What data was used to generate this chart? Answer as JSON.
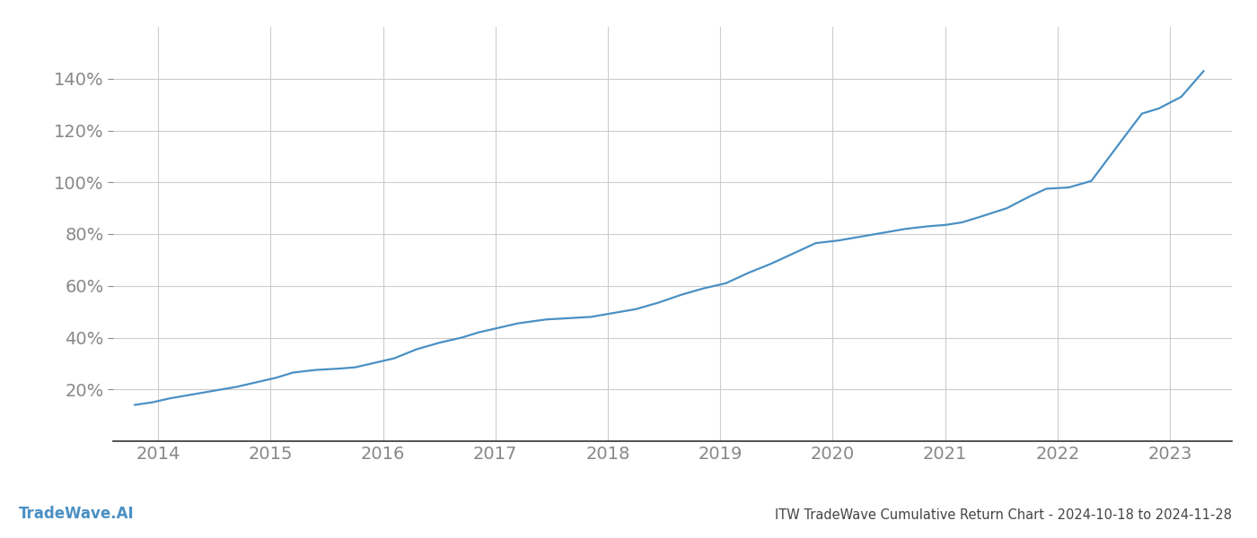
{
  "title": "ITW TradeWave Cumulative Return Chart - 2024-10-18 to 2024-11-28",
  "watermark": "TradeWave.AI",
  "line_color": "#4a90c4",
  "background_color": "#ffffff",
  "grid_color": "#cccccc",
  "x_tick_color": "#888888",
  "y_tick_color": "#888888",
  "x_years": [
    2014,
    2015,
    2016,
    2017,
    2018,
    2019,
    2020,
    2021,
    2022,
    2023
  ],
  "x_data": [
    2013.79,
    2013.95,
    2014.1,
    2014.3,
    2014.5,
    2014.7,
    2014.85,
    2015.05,
    2015.2,
    2015.4,
    2015.6,
    2015.75,
    2015.9,
    2016.1,
    2016.3,
    2016.5,
    2016.7,
    2016.85,
    2017.05,
    2017.2,
    2017.45,
    2017.65,
    2017.85,
    2018.05,
    2018.25,
    2018.45,
    2018.65,
    2018.85,
    2019.05,
    2019.25,
    2019.45,
    2019.65,
    2019.85,
    2020.05,
    2020.25,
    2020.45,
    2020.65,
    2020.75,
    2020.85,
    2021.0,
    2021.15,
    2021.3,
    2021.55,
    2021.75,
    2021.9,
    2022.1,
    2022.3,
    2022.55,
    2022.75,
    2022.9,
    2023.1,
    2023.3
  ],
  "y_data": [
    14.0,
    15.0,
    16.5,
    18.0,
    19.5,
    21.0,
    22.5,
    24.5,
    26.5,
    27.5,
    28.0,
    28.5,
    30.0,
    32.0,
    35.5,
    38.0,
    40.0,
    42.0,
    44.0,
    45.5,
    47.0,
    47.5,
    48.0,
    49.5,
    51.0,
    53.5,
    56.5,
    59.0,
    61.0,
    65.0,
    68.5,
    72.5,
    76.5,
    77.5,
    79.0,
    80.5,
    82.0,
    82.5,
    83.0,
    83.5,
    84.5,
    86.5,
    90.0,
    94.5,
    97.5,
    98.0,
    100.5,
    115.0,
    126.5,
    128.5,
    133.0,
    143.0
  ],
  "ylim": [
    0,
    160
  ],
  "xlim": [
    2013.6,
    2023.55
  ],
  "yticks": [
    20,
    40,
    60,
    80,
    100,
    120,
    140
  ],
  "line_width": 1.6,
  "title_fontsize": 10.5,
  "watermark_fontsize": 12,
  "tick_fontsize": 14,
  "spine_color": "#333333"
}
